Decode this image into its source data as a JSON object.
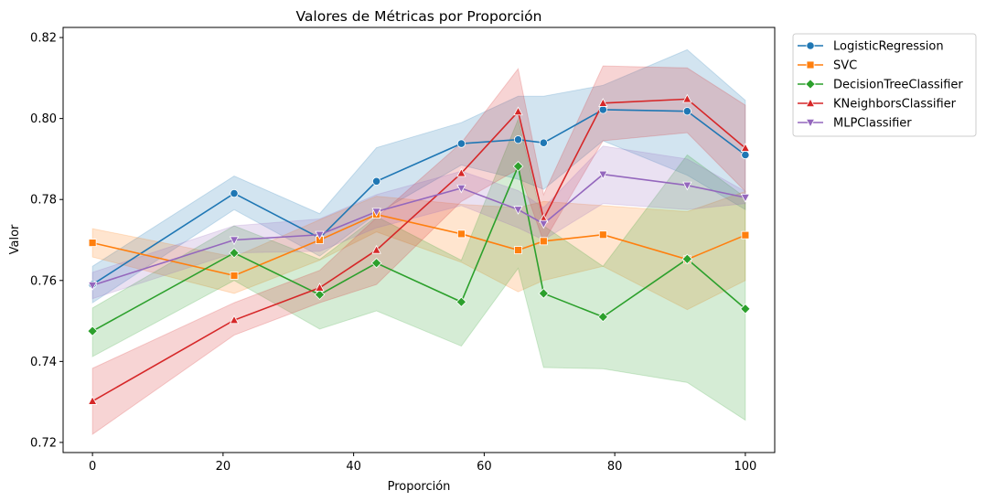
{
  "chart_data": {
    "type": "line",
    "title": "Valores de Métricas por Proporción",
    "xlabel": "Proporción",
    "ylabel": "Valor",
    "xlim": [
      -4.5,
      104.5
    ],
    "ylim": [
      0.7175,
      0.8225
    ],
    "x_ticks": [
      0,
      20,
      40,
      60,
      80,
      100
    ],
    "y_ticks": [
      0.72,
      0.74,
      0.76,
      0.78,
      0.8,
      0.82
    ],
    "x_tick_labels": [
      "0",
      "20",
      "40",
      "60",
      "80",
      "100"
    ],
    "y_tick_labels": [
      "0.72",
      "0.74",
      "0.76",
      "0.78",
      "0.80",
      "0.82"
    ],
    "grid": false,
    "legend_position": "outside top-right",
    "x": [
      0,
      21.7,
      34.8,
      43.5,
      56.5,
      65.2,
      69.1,
      78.2,
      91.1,
      100
    ],
    "series": [
      {
        "name": "LogisticRegression",
        "color": "#1f77b4",
        "marker": "circle",
        "values": [
          0.759,
          0.7815,
          0.7705,
          0.7845,
          0.7938,
          0.7948,
          0.794,
          0.8022,
          0.8018,
          0.791
        ],
        "ci_lower": [
          0.7545,
          0.7775,
          0.766,
          0.7765,
          0.7885,
          0.785,
          0.7825,
          0.7945,
          0.786,
          0.7775
        ],
        "ci_upper": [
          0.7635,
          0.7858,
          0.7765,
          0.7928,
          0.799,
          0.8055,
          0.8055,
          0.8082,
          0.817,
          0.8045
        ]
      },
      {
        "name": "SVC",
        "color": "#ff7f0e",
        "marker": "square",
        "values": [
          0.7693,
          0.7612,
          0.77,
          0.7763,
          0.7715,
          0.7675,
          0.7697,
          0.7713,
          0.7652,
          0.7712
        ],
        "ci_lower": [
          0.7658,
          0.7568,
          0.765,
          0.772,
          0.7645,
          0.7572,
          0.76,
          0.7635,
          0.7528,
          0.76
        ],
        "ci_upper": [
          0.7728,
          0.7658,
          0.775,
          0.7808,
          0.7788,
          0.778,
          0.7795,
          0.7785,
          0.777,
          0.782
        ]
      },
      {
        "name": "DecisionTreeClassifier",
        "color": "#2ca02c",
        "marker": "diamond",
        "values": [
          0.7475,
          0.7668,
          0.7565,
          0.7643,
          0.7547,
          0.7882,
          0.7568,
          0.751,
          0.7653,
          0.753
        ],
        "ci_lower": [
          0.7412,
          0.76,
          0.748,
          0.7525,
          0.7438,
          0.763,
          0.7385,
          0.7382,
          0.7348,
          0.7255
        ],
        "ci_upper": [
          0.7532,
          0.7735,
          0.7652,
          0.7758,
          0.765,
          0.7998,
          0.7735,
          0.7635,
          0.791,
          0.7805
        ]
      },
      {
        "name": "KNeighborsClassifier",
        "color": "#d62728",
        "marker": "triangle-up",
        "values": [
          0.7302,
          0.7502,
          0.7582,
          0.7675,
          0.7865,
          0.8017,
          0.7752,
          0.8038,
          0.8048,
          0.7927
        ],
        "ci_lower": [
          0.722,
          0.7465,
          0.7545,
          0.759,
          0.7795,
          0.7875,
          0.7695,
          0.7945,
          0.7965,
          0.782
        ],
        "ci_upper": [
          0.7383,
          0.7545,
          0.7625,
          0.7755,
          0.794,
          0.8123,
          0.7812,
          0.813,
          0.8125,
          0.8033
        ]
      },
      {
        "name": "MLPClassifier",
        "color": "#9467bd",
        "marker": "triangle-down",
        "values": [
          0.7588,
          0.77,
          0.7713,
          0.777,
          0.7828,
          0.7775,
          0.774,
          0.7862,
          0.7835,
          0.7805
        ],
        "ci_lower": [
          0.7555,
          0.7668,
          0.7672,
          0.773,
          0.7785,
          0.773,
          0.77,
          0.779,
          0.7775,
          0.779
        ],
        "ci_upper": [
          0.762,
          0.7735,
          0.7752,
          0.7812,
          0.787,
          0.7822,
          0.778,
          0.7932,
          0.79,
          0.782
        ]
      }
    ]
  }
}
